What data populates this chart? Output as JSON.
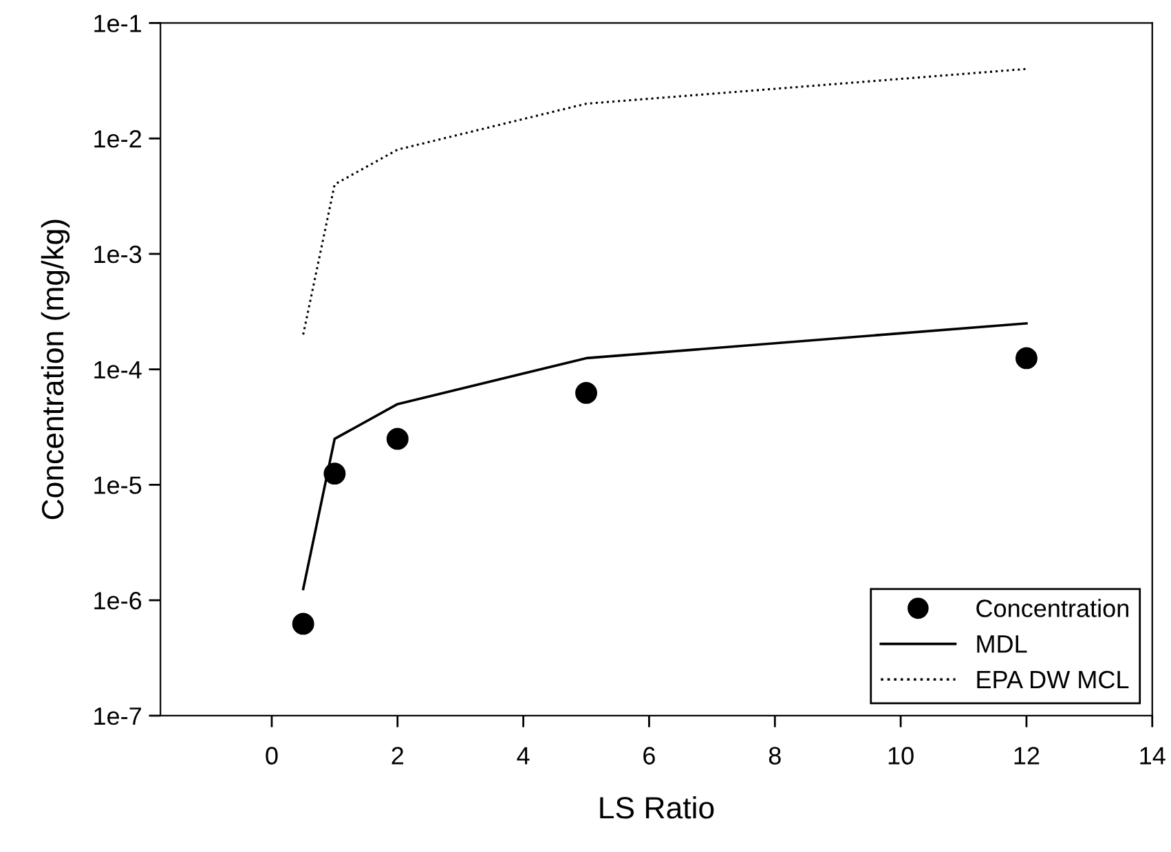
{
  "chart_data": {
    "type": "scatter",
    "xlabel": "LS Ratio",
    "ylabel": "Concentration (mg/kg)",
    "x": [
      0.5,
      1,
      2,
      5,
      12
    ],
    "series": [
      {
        "name": "Concentration",
        "color": "#000000",
        "marker": "circle",
        "values": [
          6.25e-07,
          1.25e-05,
          2.5e-05,
          6.25e-05,
          0.000125
        ]
      },
      {
        "name": "MDL",
        "type": "line",
        "color": "#000000",
        "marker": "none",
        "line_style": "solid",
        "values": [
          1.25e-06,
          2.5e-05,
          5e-05,
          0.000125,
          0.00025
        ]
      },
      {
        "name": "EPA DW MCL",
        "type": "line",
        "color": "#000000",
        "marker": "none",
        "line_style": "dotted",
        "values": [
          0.0002,
          0.004,
          0.008,
          0.02,
          0.04
        ]
      }
    ],
    "log": "y",
    "xlim": [
      -1.77,
      14
    ],
    "xticks": [
      0,
      2,
      4,
      6,
      8,
      10,
      12,
      14
    ],
    "ylim": [
      1e-07,
      0.1
    ],
    "yticks": [
      {
        "value": 1e-07,
        "label": "1e-7"
      },
      {
        "value": 1e-06,
        "label": "1e-6"
      },
      {
        "value": 1e-05,
        "label": "1e-5"
      },
      {
        "value": 0.0001,
        "label": "1e-4"
      },
      {
        "value": 0.001,
        "label": "1e-3"
      },
      {
        "value": 0.01,
        "label": "1e-2"
      },
      {
        "value": 0.1,
        "label": "1e-1"
      }
    ],
    "grid": false,
    "legend": "bottom right"
  }
}
